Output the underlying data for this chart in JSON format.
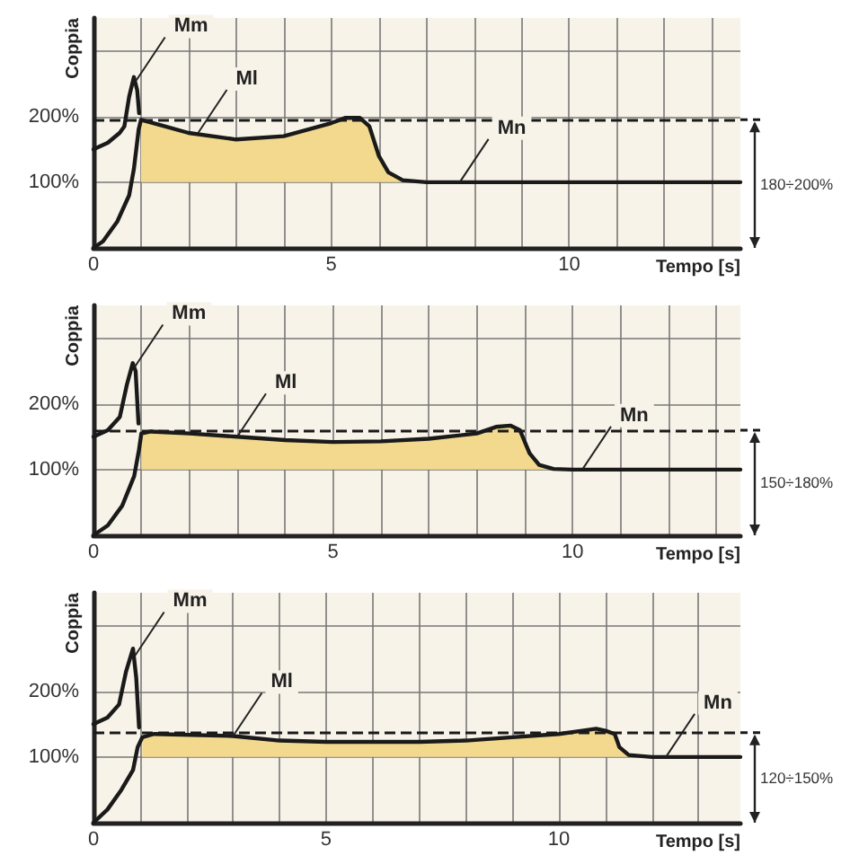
{
  "chart_data": [
    {
      "type": "line",
      "xlabel": "Tempo [s]",
      "ylabel": "Coppia",
      "xlim": [
        0,
        13.6
      ],
      "ylim": [
        0,
        350
      ],
      "grid": true,
      "marker": "none",
      "line_style": "solid",
      "xticks": [
        0,
        {
          "value": 1,
          "label": null
        },
        {
          "value": 2,
          "label": null
        },
        {
          "value": 3,
          "label": null
        },
        {
          "value": 4,
          "label": null
        },
        5,
        {
          "value": 6,
          "label": null
        },
        {
          "value": 7,
          "label": null
        },
        {
          "value": 8,
          "label": null
        },
        {
          "value": 9,
          "label": null
        },
        10,
        {
          "value": 11,
          "label": null
        },
        {
          "value": 12,
          "label": null
        },
        {
          "value": 13,
          "label": null
        }
      ],
      "yticks": [
        {
          "value": 100,
          "label": "100%"
        },
        {
          "value": 200,
          "label": "200%"
        },
        {
          "value": 300,
          "label": null
        }
      ],
      "series": [
        {
          "color": "#1a1a1a",
          "x": [
            0,
            0.3,
            0.55,
            0.65,
            0.75,
            0.85,
            0.92,
            0.96
          ],
          "values": [
            150,
            160,
            175,
            185,
            230,
            260,
            240,
            205
          ]
        },
        {
          "color": "#1a1a1a",
          "x": [
            0,
            0.2,
            0.5,
            0.75,
            0.85,
            0.95,
            1.0,
            1.5,
            2,
            3,
            4,
            4.5,
            5,
            5.3,
            5.6,
            5.8,
            6.0,
            6.2,
            6.5,
            7,
            13.6
          ],
          "values": [
            0,
            10,
            40,
            80,
            120,
            180,
            195,
            185,
            175,
            165,
            170,
            180,
            190,
            198,
            198,
            185,
            140,
            115,
            103,
            100,
            100
          ],
          "lower": [
            null,
            null,
            null,
            null,
            null,
            null,
            100,
            100,
            100,
            100,
            100,
            100,
            100,
            100,
            100,
            100,
            100,
            100,
            100,
            null,
            null
          ],
          "upper": [
            null,
            null,
            null,
            null,
            null,
            null,
            195,
            185,
            175,
            165,
            170,
            180,
            190,
            198,
            198,
            185,
            140,
            115,
            103,
            null,
            null
          ]
        }
      ],
      "ref_lines": [
        {
          "axis": "y",
          "value": 195,
          "label": "180÷200%",
          "line_style": "dashed",
          "color": "#1a1a1a"
        }
      ],
      "annotations": [
        {
          "text": "Mm",
          "x": 0.9,
          "y": 255
        },
        {
          "text": "Ml",
          "x": 2.2,
          "y": 175
        },
        {
          "text": "Mn",
          "x": 7.7,
          "y": 100
        }
      ]
    },
    {
      "type": "line",
      "xlabel": "Tempo [s]",
      "ylabel": "Coppia",
      "xlim": [
        0,
        13.5
      ],
      "ylim": [
        0,
        350
      ],
      "grid": true,
      "marker": "none",
      "line_style": "solid",
      "xticks": [
        0,
        {
          "value": 1,
          "label": null
        },
        {
          "value": 2,
          "label": null
        },
        {
          "value": 3,
          "label": null
        },
        {
          "value": 4,
          "label": null
        },
        5,
        {
          "value": 6,
          "label": null
        },
        {
          "value": 7,
          "label": null
        },
        {
          "value": 8,
          "label": null
        },
        {
          "value": 9,
          "label": null
        },
        10,
        {
          "value": 11,
          "label": null
        },
        {
          "value": 12,
          "label": null
        },
        {
          "value": 13,
          "label": null
        }
      ],
      "yticks": [
        {
          "value": 100,
          "label": "100%"
        },
        {
          "value": 200,
          "label": "200%"
        },
        {
          "value": 300,
          "label": null
        }
      ],
      "series": [
        {
          "color": "#1a1a1a",
          "x": [
            0,
            0.3,
            0.55,
            0.7,
            0.82,
            0.88,
            0.94
          ],
          "values": [
            150,
            160,
            180,
            230,
            262,
            250,
            170
          ]
        },
        {
          "color": "#1a1a1a",
          "x": [
            0,
            0.3,
            0.6,
            0.85,
            0.95,
            1,
            1.2,
            2,
            3,
            4,
            5,
            6,
            7,
            8,
            8.4,
            8.7,
            8.9,
            9.1,
            9.3,
            9.6,
            10,
            13.5
          ],
          "values": [
            0,
            15,
            45,
            90,
            130,
            155,
            158,
            155,
            150,
            145,
            142,
            143,
            147,
            155,
            165,
            167,
            160,
            125,
            107,
            101,
            100,
            100
          ],
          "lower": [
            null,
            null,
            null,
            null,
            null,
            100,
            100,
            100,
            100,
            100,
            100,
            100,
            100,
            100,
            100,
            100,
            100,
            100,
            100,
            100,
            null,
            null
          ],
          "upper": [
            null,
            null,
            null,
            null,
            null,
            155,
            158,
            155,
            150,
            145,
            142,
            143,
            147,
            155,
            165,
            167,
            160,
            125,
            107,
            101,
            null,
            null
          ]
        }
      ],
      "ref_lines": [
        {
          "axis": "y",
          "value": 160,
          "label": "150÷180%",
          "line_style": "dashed",
          "color": "#1a1a1a"
        }
      ],
      "annotations": [
        {
          "text": "Mm",
          "x": 0.85,
          "y": 255
        },
        {
          "text": "Ml",
          "x": 3,
          "y": 150
        },
        {
          "text": "Mn",
          "x": 10.2,
          "y": 100
        }
      ]
    },
    {
      "type": "line",
      "xlabel": "Tempo [s]",
      "ylabel": "Coppia",
      "xlim": [
        0,
        13.9
      ],
      "ylim": [
        0,
        350
      ],
      "grid": true,
      "marker": "none",
      "line_style": "solid",
      "xticks": [
        0,
        {
          "value": 1,
          "label": null
        },
        {
          "value": 2,
          "label": null
        },
        {
          "value": 3,
          "label": null
        },
        {
          "value": 4,
          "label": null
        },
        5,
        {
          "value": 6,
          "label": null
        },
        {
          "value": 7,
          "label": null
        },
        {
          "value": 8,
          "label": null
        },
        {
          "value": 9,
          "label": null
        },
        10,
        {
          "value": 11,
          "label": null
        },
        {
          "value": 12,
          "label": null
        },
        {
          "value": 13,
          "label": null
        }
      ],
      "yticks": [
        {
          "value": 100,
          "label": "100%"
        },
        {
          "value": 200,
          "label": "200%"
        },
        {
          "value": 300,
          "label": null
        }
      ],
      "series": [
        {
          "color": "#1a1a1a",
          "x": [
            0,
            0.3,
            0.55,
            0.7,
            0.85,
            0.92,
            0.98
          ],
          "values": [
            150,
            160,
            180,
            230,
            265,
            220,
            145
          ]
        },
        {
          "color": "#1a1a1a",
          "x": [
            0,
            0.3,
            0.6,
            0.85,
            0.95,
            1.05,
            1.3,
            3,
            4,
            5,
            7,
            8,
            9,
            10,
            10.5,
            10.8,
            11,
            11.2,
            11.3,
            11.5,
            12,
            13.9
          ],
          "values": [
            0,
            20,
            50,
            80,
            115,
            130,
            135,
            132,
            125,
            123,
            123,
            125,
            130,
            135,
            140,
            143,
            140,
            135,
            115,
            103,
            100,
            100
          ],
          "lower": [
            null,
            null,
            null,
            null,
            null,
            100,
            100,
            100,
            100,
            100,
            100,
            100,
            100,
            100,
            100,
            100,
            100,
            100,
            100,
            100,
            null,
            null
          ],
          "upper": [
            null,
            null,
            null,
            null,
            null,
            130,
            135,
            132,
            125,
            123,
            123,
            125,
            130,
            135,
            140,
            143,
            140,
            135,
            115,
            103,
            null,
            null
          ]
        }
      ],
      "ref_lines": [
        {
          "axis": "y",
          "value": 137,
          "label": "120÷150%",
          "line_style": "dashed",
          "color": "#1a1a1a"
        }
      ],
      "annotations": [
        {
          "text": "Mm",
          "x": 0.9,
          "y": 255
        },
        {
          "text": "Ml",
          "x": 3,
          "y": 132
        },
        {
          "text": "Mn",
          "x": 12.3,
          "y": 100
        }
      ]
    }
  ]
}
